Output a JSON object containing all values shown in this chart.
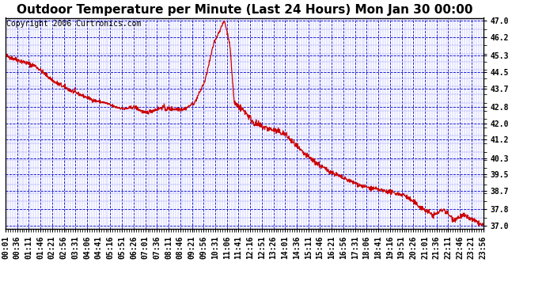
{
  "title": "Outdoor Temperature per Minute (Last 24 Hours) Mon Jan 30 00:00",
  "copyright": "Copyright 2006 Curtronics.com",
  "line_color": "#cc0000",
  "grid_color_major": "#0000cc",
  "grid_color_minor": "#6666ff",
  "y_ticks": [
    37.0,
    37.8,
    38.7,
    39.5,
    40.3,
    41.2,
    42.0,
    42.8,
    43.7,
    44.5,
    45.3,
    46.2,
    47.0
  ],
  "ylim": [
    36.85,
    47.15
  ],
  "x_tick_labels": [
    "00:01",
    "00:36",
    "01:11",
    "01:46",
    "02:21",
    "02:56",
    "03:31",
    "04:06",
    "04:41",
    "05:16",
    "05:51",
    "06:26",
    "07:01",
    "07:36",
    "08:11",
    "08:46",
    "09:21",
    "09:56",
    "10:31",
    "11:06",
    "11:41",
    "12:16",
    "12:51",
    "13:26",
    "14:01",
    "14:36",
    "15:11",
    "15:46",
    "16:21",
    "16:56",
    "17:31",
    "18:06",
    "18:41",
    "19:16",
    "19:51",
    "20:26",
    "21:01",
    "21:36",
    "22:11",
    "22:46",
    "23:21",
    "23:56"
  ],
  "title_fontsize": 11,
  "tick_fontsize": 7,
  "copyright_fontsize": 7
}
